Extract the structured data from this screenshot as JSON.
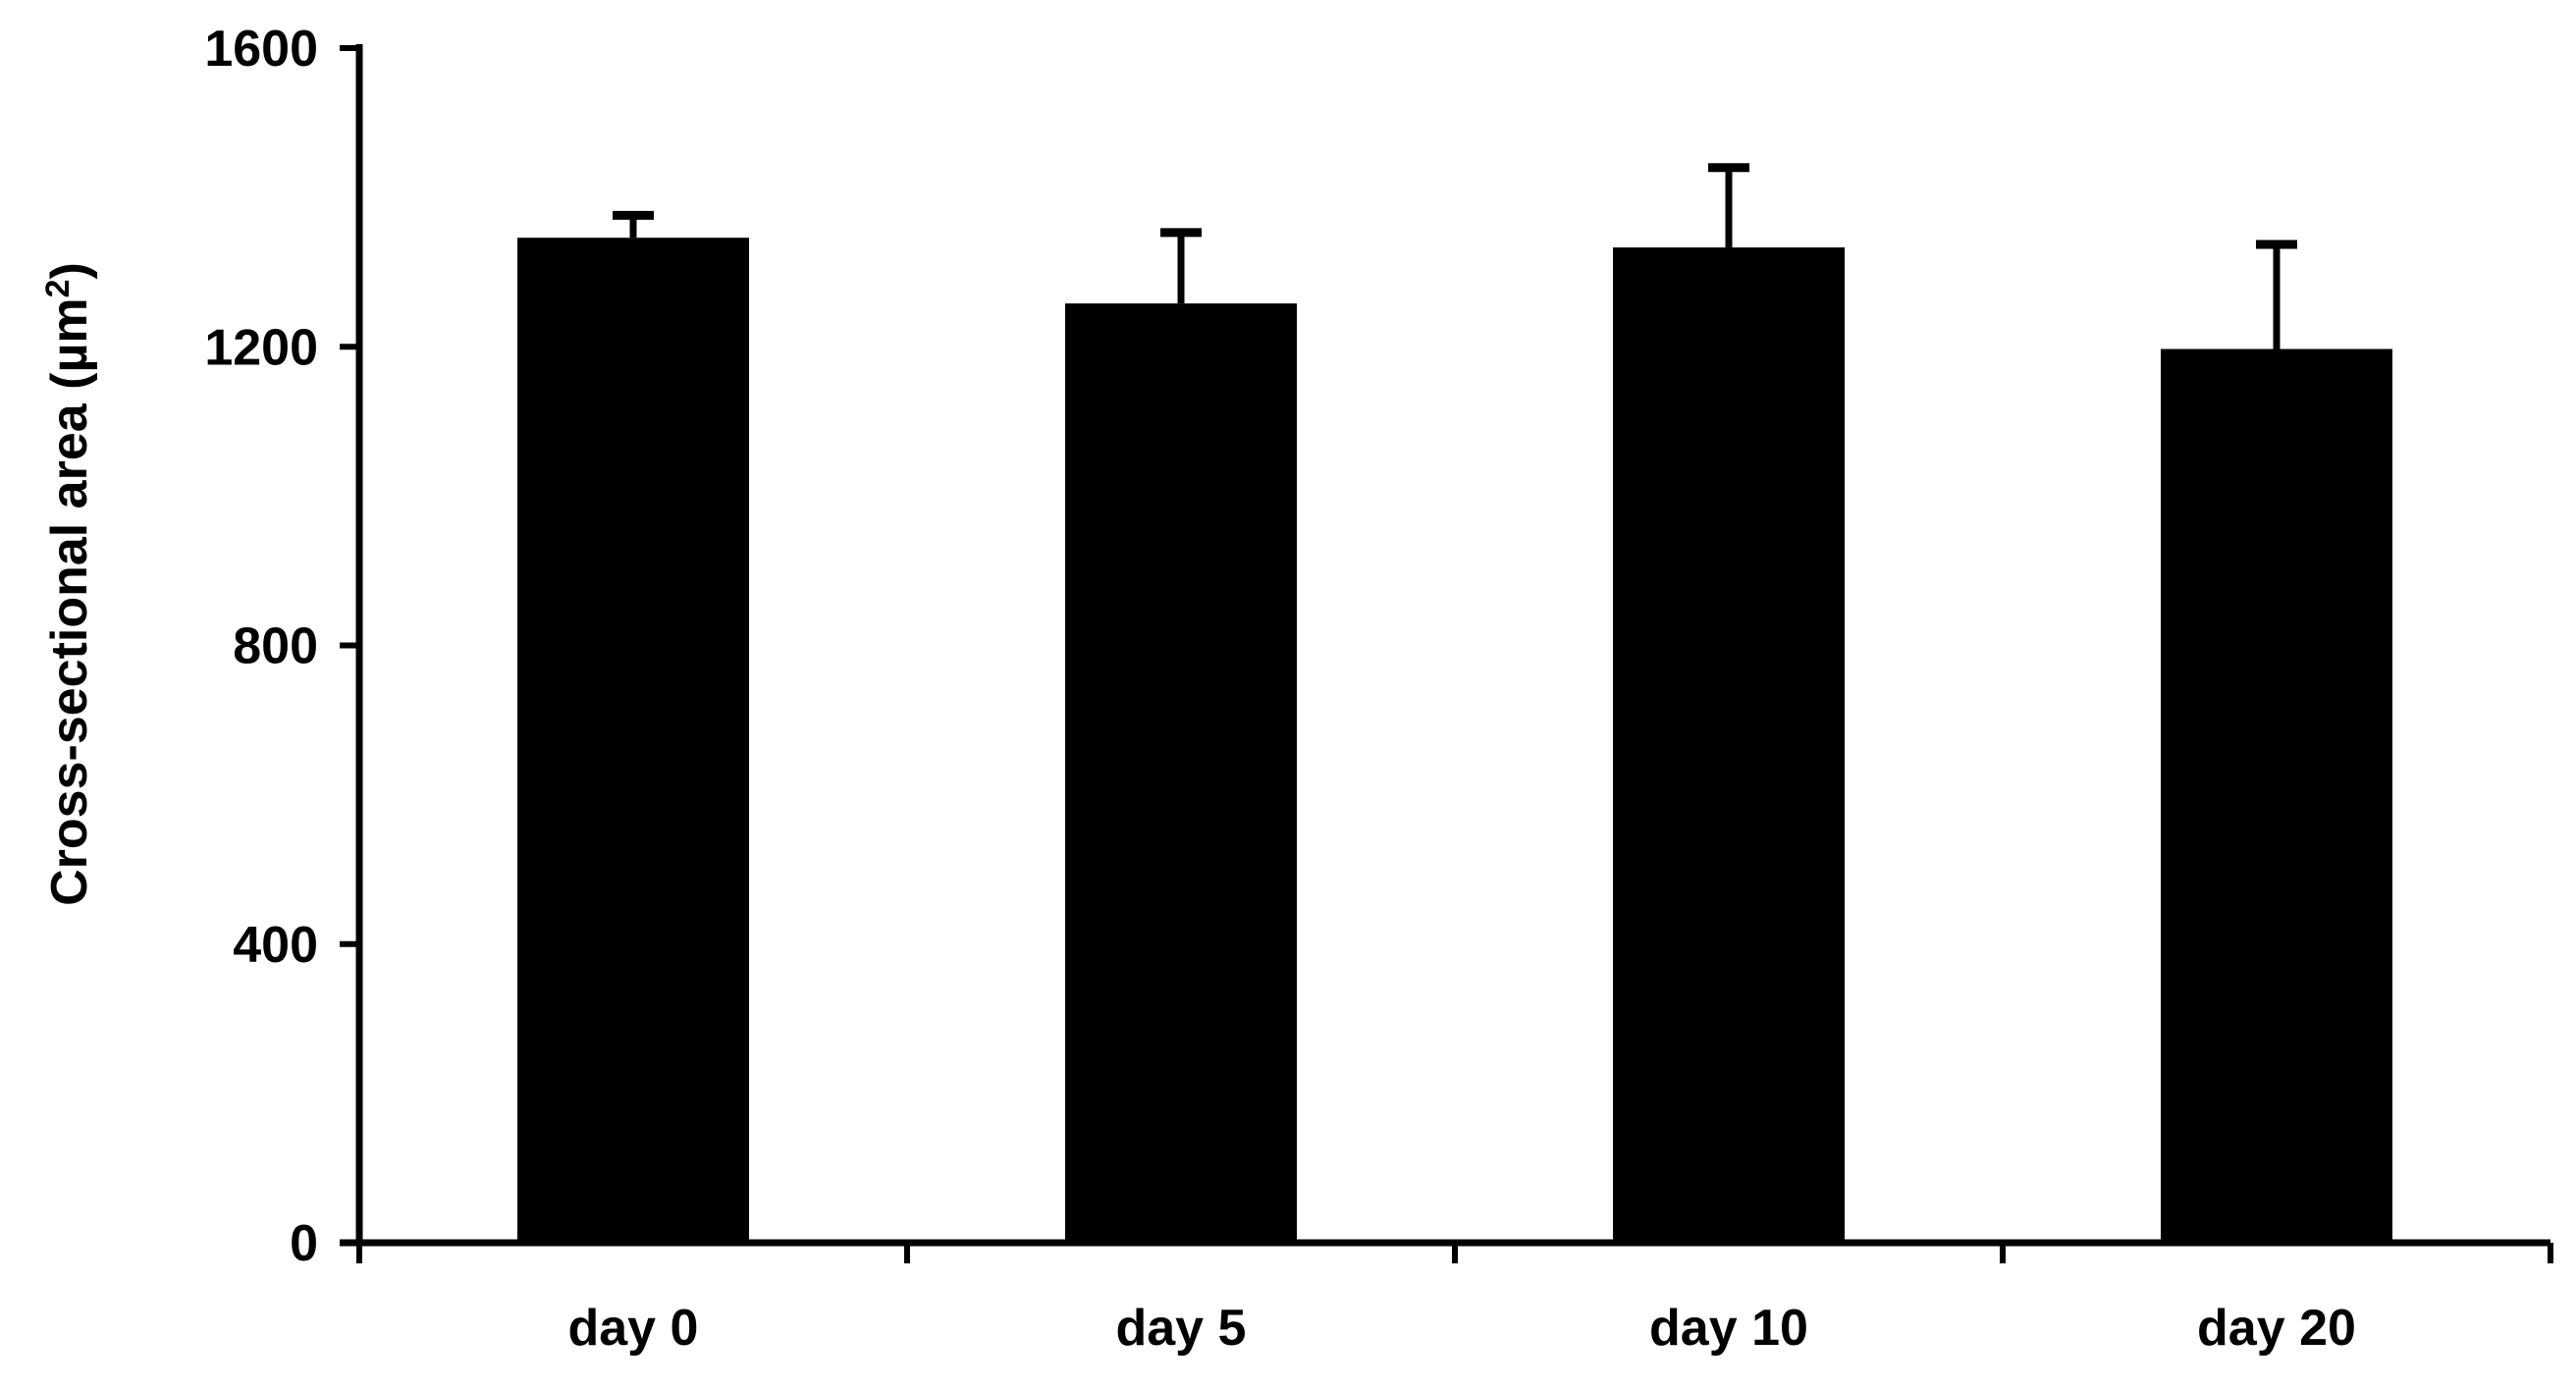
{
  "chart_data": {
    "type": "bar",
    "title": "",
    "xlabel": "",
    "ylabel": {
      "main": "Cross-sectional area (µm",
      "superscript": "2",
      "suffix": ")"
    },
    "categories": [
      "day 0",
      "day 5",
      "day 10",
      "day 20"
    ],
    "values": [
      1346,
      1258,
      1333,
      1197
    ],
    "error_upper": [
      30,
      95,
      107,
      140
    ],
    "ylim": [
      0,
      1600
    ],
    "yticks": [
      "0",
      "400",
      "800",
      "1200",
      "1600"
    ],
    "ytick_values": [
      0,
      400,
      800,
      1200,
      1600
    ],
    "bar_color": "#000000",
    "grid": false,
    "legend": "none"
  }
}
